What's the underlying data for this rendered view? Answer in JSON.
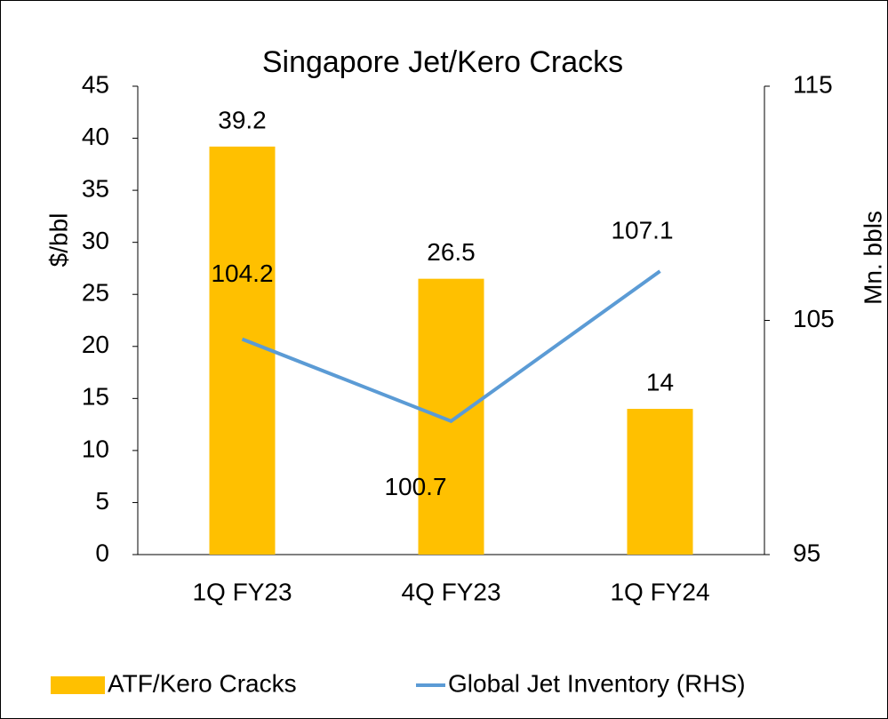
{
  "chart_data": {
    "type": "bar_line",
    "title": "Singapore Jet/Kero Cracks",
    "y_label": "$/bbl",
    "y2_label": "Mn. bbls",
    "categories": [
      "1Q FY23",
      "4Q FY23",
      "1Q FY24"
    ],
    "series": [
      {
        "name": "ATF/Kero Cracks",
        "type": "bar",
        "color": "#ffc000",
        "values": [
          39.2,
          26.5,
          14
        ]
      },
      {
        "name": "Global Jet Inventory (RHS)",
        "type": "line",
        "color": "#5b9bd5",
        "values": [
          104.2,
          100.7,
          107.1
        ],
        "axis": "y2"
      }
    ],
    "ylim": [
      0,
      45
    ],
    "yticks": [
      0,
      5,
      10,
      15,
      20,
      25,
      30,
      35,
      40,
      45
    ],
    "y2lim": [
      95,
      115
    ],
    "y2ticks": [
      95,
      105,
      115
    ],
    "legend": "bottom",
    "grid": false
  }
}
